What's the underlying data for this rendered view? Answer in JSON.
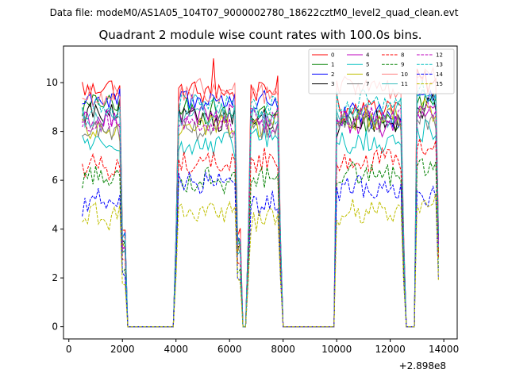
{
  "suptitle": "Data file: modeM0/AS1A05_104T07_9000002780_18622cztM0_level2_quad_clean.evt",
  "chart_data": {
    "type": "line",
    "title": "Quadrant 2 module wise count rates with 100.0s bins.",
    "xlabel": "",
    "ylabel": "",
    "x_offset_label": "+2.898e8",
    "xlim": [
      -200,
      14500
    ],
    "ylim": [
      -0.5,
      11.5
    ],
    "xticks": [
      0,
      2000,
      4000,
      6000,
      8000,
      10000,
      12000,
      14000
    ],
    "xtick_labels": [
      "0",
      "2000",
      "4000",
      "6000",
      "8000",
      "10000",
      "12000",
      "14000"
    ],
    "yticks": [
      0,
      2,
      4,
      6,
      8,
      10
    ],
    "ytick_labels": [
      "0",
      "2",
      "4",
      "6",
      "8",
      "10"
    ],
    "legend_location": "upper right",
    "legend_columns": 4,
    "segments": [
      {
        "start": 500,
        "end": 1950
      },
      {
        "start": 4100,
        "end": 6250
      },
      {
        "start": 6750,
        "end": 7850
      },
      {
        "start": 10000,
        "end": 12450
      },
      {
        "start": 12950,
        "end": 13700
      }
    ],
    "zero_gaps": [
      [
        2150,
        3950
      ],
      [
        6450,
        6650
      ],
      [
        7950,
        9950
      ],
      [
        12550,
        12950
      ]
    ],
    "series": [
      {
        "name": "0",
        "color": "#ff0000",
        "dash": "solid",
        "level": 9.7,
        "seg_levels": [
          9.8,
          9.6,
          9.7,
          9.0,
          10.0
        ],
        "peak": 11.0
      },
      {
        "name": "1",
        "color": "#008000",
        "dash": "solid",
        "level": 8.8,
        "seg_levels": [
          9.1,
          8.8,
          8.7,
          8.4,
          9.3
        ]
      },
      {
        "name": "2",
        "color": "#0000ff",
        "dash": "solid",
        "level": 9.2,
        "seg_levels": [
          9.3,
          9.3,
          9.2,
          8.6,
          9.6
        ]
      },
      {
        "name": "3",
        "color": "#000000",
        "dash": "solid",
        "level": 8.5,
        "seg_levels": [
          8.7,
          8.6,
          8.4,
          8.3,
          9.1
        ]
      },
      {
        "name": "4",
        "color": "#bf00bf",
        "dash": "solid",
        "level": 8.3,
        "seg_levels": [
          8.5,
          8.6,
          8.3,
          8.3,
          8.8
        ]
      },
      {
        "name": "5",
        "color": "#00bfbf",
        "dash": "solid",
        "level": 7.5,
        "seg_levels": [
          7.6,
          7.4,
          7.8,
          7.5,
          7.9
        ]
      },
      {
        "name": "6",
        "color": "#bfbf00",
        "dash": "solid",
        "level": 8.1,
        "seg_levels": [
          8.0,
          8.3,
          8.2,
          8.5,
          9.0
        ]
      },
      {
        "name": "7",
        "color": "#808080",
        "dash": "solid",
        "level": 8.0,
        "seg_levels": [
          8.0,
          8.2,
          8.1,
          8.4,
          8.6
        ]
      },
      {
        "name": "8",
        "color": "#ff0000",
        "dash": "dashed",
        "level": 6.7,
        "seg_levels": [
          6.6,
          6.7,
          6.8,
          6.8,
          7.3
        ]
      },
      {
        "name": "9",
        "color": "#008000",
        "dash": "dashed",
        "level": 6.0,
        "seg_levels": [
          6.1,
          6.0,
          6.0,
          6.3,
          6.6
        ]
      },
      {
        "name": "10",
        "color": "#ff8080",
        "dash": "solid",
        "level": 9.5,
        "seg_levels": [
          9.3,
          9.6,
          9.5,
          9.8,
          10.1
        ]
      },
      {
        "name": "11",
        "color": "#40bfbf",
        "dash": "solid",
        "level": 8.6,
        "seg_levels": [
          8.5,
          8.7,
          8.6,
          8.7,
          9.2
        ]
      },
      {
        "name": "12",
        "color": "#bf00bf",
        "dash": "dashed",
        "level": 8.4,
        "seg_levels": [
          8.3,
          8.4,
          8.5,
          8.6,
          8.8
        ]
      },
      {
        "name": "13",
        "color": "#00bfbf",
        "dash": "dashed",
        "level": 9.1,
        "seg_levels": [
          8.9,
          9.1,
          9.0,
          9.2,
          9.6
        ]
      },
      {
        "name": "14",
        "color": "#0000ff",
        "dash": "dashed",
        "level": 5.1,
        "seg_levels": [
          5.1,
          5.9,
          5.1,
          5.7,
          5.5
        ]
      },
      {
        "name": "15",
        "color": "#bfbf00",
        "dash": "dashed",
        "level": 4.6,
        "seg_levels": [
          4.5,
          4.7,
          4.4,
          4.7,
          4.9
        ]
      }
    ]
  }
}
